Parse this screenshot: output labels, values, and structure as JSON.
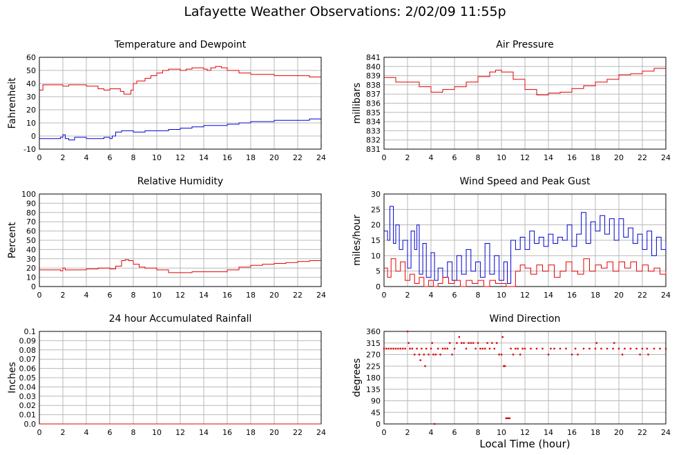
{
  "page": {
    "title": "Lafayette Weather Observations: 2/02/09 11:55p",
    "shared_xlabel": "Local Time (hour)"
  },
  "colors": {
    "red": "#e00000",
    "blue": "#0000d0",
    "grid": "#b8b8b8",
    "frame": "#000000"
  },
  "chart_data": [
    {
      "id": "temperature",
      "type": "line",
      "title": "Temperature and Dewpoint",
      "xlabel": "",
      "ylabel": "Fahrenheit",
      "xlim": [
        0,
        24
      ],
      "ylim": [
        -10,
        60
      ],
      "xticks": [
        0,
        2,
        4,
        6,
        8,
        10,
        12,
        14,
        16,
        18,
        20,
        22,
        24
      ],
      "yticks": [
        -10,
        0,
        10,
        20,
        30,
        40,
        50,
        60
      ],
      "ytick_labels": [
        "-10",
        "0",
        "10",
        "20",
        "30",
        "40",
        "50",
        "60"
      ],
      "grid": true,
      "series": [
        {
          "color": "red",
          "style": "line",
          "x": [
            0,
            0.3,
            0.8,
            1.5,
            2,
            2.5,
            3,
            4,
            5,
            5.5,
            6,
            6.3,
            6.6,
            6.9,
            7.2,
            7.5,
            7.8,
            8,
            8.3,
            8.6,
            9,
            9.5,
            10,
            10.5,
            11,
            11.5,
            12,
            12.5,
            13,
            13.5,
            14,
            14.3,
            14.6,
            15,
            15.5,
            16,
            17,
            18,
            19,
            20,
            21,
            22,
            23,
            24
          ],
          "y": [
            35,
            39,
            39,
            39,
            38,
            39,
            39,
            38,
            36,
            35,
            36,
            36,
            36,
            34,
            32,
            32,
            35,
            40,
            42,
            42,
            44,
            46,
            48,
            50,
            51,
            51,
            50,
            51,
            52,
            52,
            51,
            50,
            52,
            53,
            52,
            50,
            48,
            47,
            47,
            46,
            46,
            46,
            45,
            45
          ]
        },
        {
          "color": "blue",
          "style": "line",
          "x": [
            0,
            1,
            1.8,
            2,
            2.2,
            2.5,
            3,
            4,
            5,
            5.5,
            6,
            6.2,
            6.5,
            7,
            8,
            9,
            10,
            11,
            12,
            13,
            14,
            15,
            16,
            17,
            18,
            19,
            20,
            21,
            22,
            23,
            24
          ],
          "y": [
            -2,
            -2,
            -1,
            1,
            -2,
            -3,
            -1,
            -2,
            -2,
            -1,
            -2,
            0,
            3,
            4,
            3,
            4,
            4,
            5,
            6,
            7,
            8,
            8,
            9,
            10,
            11,
            11,
            12,
            12,
            12,
            13,
            13
          ]
        }
      ]
    },
    {
      "id": "pressure",
      "type": "line",
      "title": "Air Pressure",
      "xlabel": "",
      "ylabel": "millibars",
      "xlim": [
        0,
        24
      ],
      "ylim": [
        831,
        841
      ],
      "xticks": [
        0,
        2,
        4,
        6,
        8,
        10,
        12,
        14,
        16,
        18,
        20,
        22,
        24
      ],
      "yticks": [
        831,
        832,
        833,
        834,
        835,
        836,
        837,
        838,
        839,
        840,
        841
      ],
      "ytick_labels": [
        "831",
        "832",
        "833",
        "834",
        "835",
        "836",
        "837",
        "838",
        "839",
        "840",
        "841"
      ],
      "grid": true,
      "series": [
        {
          "color": "red",
          "style": "line",
          "x": [
            0,
            1,
            2,
            3,
            4,
            5,
            6,
            7,
            8,
            9,
            9.5,
            10,
            11,
            12,
            13,
            14,
            15,
            16,
            17,
            18,
            19,
            20,
            21,
            22,
            23,
            24
          ],
          "y": [
            838.8,
            838.3,
            838.3,
            837.8,
            837.2,
            837.5,
            837.8,
            838.3,
            838.9,
            839.4,
            839.6,
            839.4,
            838.6,
            837.5,
            836.9,
            837.1,
            837.2,
            837.6,
            837.9,
            838.3,
            838.6,
            839.1,
            839.2,
            839.5,
            839.8,
            839.8
          ]
        }
      ]
    },
    {
      "id": "humidity",
      "type": "line",
      "title": "Relative Humidity",
      "xlabel": "",
      "ylabel": "Percent",
      "xlim": [
        0,
        24
      ],
      "ylim": [
        0,
        100
      ],
      "xticks": [
        0,
        2,
        4,
        6,
        8,
        10,
        12,
        14,
        16,
        18,
        20,
        22,
        24
      ],
      "yticks": [
        0,
        10,
        20,
        30,
        40,
        50,
        60,
        70,
        80,
        90,
        100
      ],
      "ytick_labels": [
        "0",
        "10",
        "20",
        "30",
        "40",
        "50",
        "60",
        "70",
        "80",
        "90",
        "100"
      ],
      "grid": true,
      "series": [
        {
          "color": "red",
          "style": "line",
          "x": [
            0,
            1,
            1.8,
            2,
            2.2,
            3,
            4,
            5,
            6,
            6.5,
            7,
            7.3,
            7.6,
            8,
            8.5,
            9,
            10,
            11,
            12,
            13,
            14,
            15,
            16,
            17,
            18,
            19,
            20,
            21,
            22,
            23,
            24
          ],
          "y": [
            18,
            18,
            17,
            20,
            18,
            18,
            19,
            20,
            19,
            22,
            28,
            29,
            28,
            24,
            21,
            20,
            18,
            15,
            15,
            16,
            16,
            16,
            18,
            21,
            23,
            24,
            25,
            26,
            27,
            28,
            28
          ]
        }
      ]
    },
    {
      "id": "wind-speed",
      "type": "line",
      "title": "Wind Speed and Peak Gust",
      "xlabel": "",
      "ylabel": "miles/hour",
      "xlim": [
        0,
        24
      ],
      "ylim": [
        0,
        30
      ],
      "xticks": [
        0,
        2,
        4,
        6,
        8,
        10,
        12,
        14,
        16,
        18,
        20,
        22,
        24
      ],
      "yticks": [
        0,
        5,
        10,
        15,
        20,
        25,
        30
      ],
      "ytick_labels": [
        "0",
        "5",
        "10",
        "15",
        "20",
        "25",
        "30"
      ],
      "grid": true,
      "series": [
        {
          "color": "blue",
          "style": "line",
          "x": [
            0,
            0.3,
            0.5,
            0.8,
            1,
            1.3,
            1.6,
            2,
            2.3,
            2.6,
            2.8,
            3,
            3.3,
            3.6,
            4,
            4.3,
            4.6,
            5,
            5.4,
            5.8,
            6.2,
            6.6,
            7,
            7.4,
            7.8,
            8.2,
            8.6,
            9,
            9.4,
            9.8,
            10.2,
            10.5,
            10.8,
            11.2,
            11.6,
            12,
            12.4,
            12.8,
            13.2,
            13.6,
            14,
            14.4,
            14.8,
            15.2,
            15.6,
            16,
            16.4,
            16.8,
            17.2,
            17.6,
            18,
            18.4,
            18.8,
            19.2,
            19.6,
            20,
            20.4,
            20.8,
            21.2,
            21.6,
            22,
            22.4,
            22.8,
            23.2,
            23.6,
            24
          ],
          "y": [
            18,
            15,
            26,
            14,
            20,
            12,
            15,
            6,
            18,
            12,
            20,
            4,
            14,
            3,
            11,
            2,
            6,
            3,
            8,
            2,
            10,
            4,
            12,
            5,
            8,
            3,
            14,
            4,
            10,
            2,
            8,
            1,
            15,
            12,
            16,
            12,
            18,
            14,
            16,
            13,
            17,
            14,
            16,
            15,
            20,
            13,
            17,
            24,
            14,
            21,
            18,
            23,
            17,
            22,
            15,
            22,
            16,
            19,
            14,
            17,
            12,
            18,
            10,
            16,
            12,
            14
          ]
        },
        {
          "color": "red",
          "style": "line",
          "x": [
            0,
            0.3,
            0.6,
            1,
            1.4,
            1.8,
            2.2,
            2.6,
            3,
            3.4,
            3.8,
            4.2,
            4.6,
            5,
            5.5,
            6,
            6.5,
            7,
            7.5,
            8,
            8.5,
            9,
            9.5,
            10,
            10.4,
            10.8,
            11.2,
            11.6,
            12,
            12.5,
            13,
            13.5,
            14,
            14.5,
            15,
            15.5,
            16,
            16.5,
            17,
            17.5,
            18,
            18.5,
            19,
            19.5,
            20,
            20.5,
            21,
            21.5,
            22,
            22.5,
            23,
            23.5,
            24
          ],
          "y": [
            6,
            3,
            9,
            5,
            8,
            2,
            4,
            1,
            3,
            0,
            2,
            0,
            1,
            3,
            1,
            2,
            0,
            2,
            1,
            2,
            0,
            2,
            1,
            1,
            0,
            0,
            5,
            7,
            6,
            4,
            7,
            5,
            7,
            3,
            5,
            8,
            5,
            4,
            9,
            5,
            7,
            6,
            8,
            5,
            8,
            6,
            8,
            5,
            7,
            5,
            6,
            4,
            5
          ]
        }
      ]
    },
    {
      "id": "rainfall",
      "type": "line",
      "title": "24 hour Accumulated Rainfall",
      "xlabel": "",
      "ylabel": "Inches",
      "xlim": [
        0,
        24
      ],
      "ylim": [
        0,
        0.1
      ],
      "xticks": [
        0,
        2,
        4,
        6,
        8,
        10,
        12,
        14,
        16,
        18,
        20,
        22,
        24
      ],
      "yticks": [
        0,
        0.01,
        0.02,
        0.03,
        0.04,
        0.05,
        0.06,
        0.07,
        0.08,
        0.09,
        0.1
      ],
      "ytick_labels": [
        "0.0",
        "0.01",
        "0.02",
        "0.03",
        "0.04",
        "0.05",
        "0.06",
        "0.07",
        "0.08",
        "0.09",
        "0.1"
      ],
      "grid": true,
      "series": [
        {
          "color": "red",
          "style": "line",
          "x": [
            0,
            24
          ],
          "y": [
            0,
            0
          ]
        }
      ]
    },
    {
      "id": "wind-direction",
      "type": "scatter",
      "title": "Wind Direction",
      "xlabel": "Local Time (hour)",
      "ylabel": "degrees",
      "xlim": [
        0,
        24
      ],
      "ylim": [
        0,
        360
      ],
      "xticks": [
        0,
        2,
        4,
        6,
        8,
        10,
        12,
        14,
        16,
        18,
        20,
        22,
        24
      ],
      "yticks": [
        0,
        45,
        90,
        135,
        180,
        225,
        270,
        315,
        360
      ],
      "ytick_labels": [
        "0",
        "45",
        "90",
        "135",
        "180",
        "225",
        "270",
        "315",
        "360"
      ],
      "grid": true,
      "series": [
        {
          "color": "red",
          "style": "points",
          "x": [
            0,
            0.2,
            0.4,
            0.6,
            0.8,
            1,
            1.2,
            1.4,
            1.6,
            1.8,
            2,
            2.1,
            2.2,
            2.4,
            2.6,
            2.8,
            3,
            3.1,
            3.2,
            3.4,
            3.5,
            3.6,
            3.8,
            4,
            4.1,
            4.2,
            4.3,
            4.4,
            4.6,
            4.8,
            5,
            5.2,
            5.4,
            5.6,
            5.8,
            6,
            6.2,
            6.4,
            6.6,
            6.8,
            7,
            7.2,
            7.4,
            7.6,
            7.8,
            8,
            8.2,
            8.4,
            8.6,
            8.8,
            9,
            9.2,
            9.4,
            9.6,
            9.8,
            10,
            10.1,
            10.2,
            10.3,
            10.4,
            10.5,
            10.6,
            10.7,
            10.8,
            11,
            11.2,
            11.4,
            11.6,
            11.8,
            12,
            12.5,
            13,
            13.5,
            14,
            14.2,
            14.5,
            15,
            15.5,
            16,
            16.3,
            16.5,
            17,
            17.5,
            18,
            18.1,
            18.5,
            19,
            19.5,
            19.6,
            20,
            20.3,
            20.5,
            21,
            21.5,
            21.8,
            22,
            22.4,
            22.5,
            23,
            23.5,
            24
          ],
          "y": [
            293,
            293,
            293,
            293,
            293,
            293,
            293,
            293,
            293,
            293,
            360,
            315,
            293,
            293,
            270,
            293,
            270,
            248,
            293,
            270,
            225,
            293,
            270,
            293,
            315,
            270,
            0,
            270,
            293,
            270,
            293,
            293,
            293,
            315,
            270,
            293,
            315,
            338,
            315,
            315,
            293,
            315,
            315,
            315,
            293,
            315,
            293,
            293,
            293,
            315,
            293,
            315,
            293,
            315,
            270,
            270,
            338,
            225,
            225,
            22,
            22,
            22,
            22,
            293,
            270,
            293,
            293,
            270,
            293,
            293,
            293,
            293,
            293,
            270,
            293,
            293,
            293,
            293,
            270,
            293,
            270,
            293,
            293,
            293,
            315,
            293,
            293,
            293,
            315,
            293,
            270,
            293,
            293,
            293,
            270,
            293,
            293,
            270,
            293,
            293,
            293
          ]
        }
      ]
    }
  ]
}
